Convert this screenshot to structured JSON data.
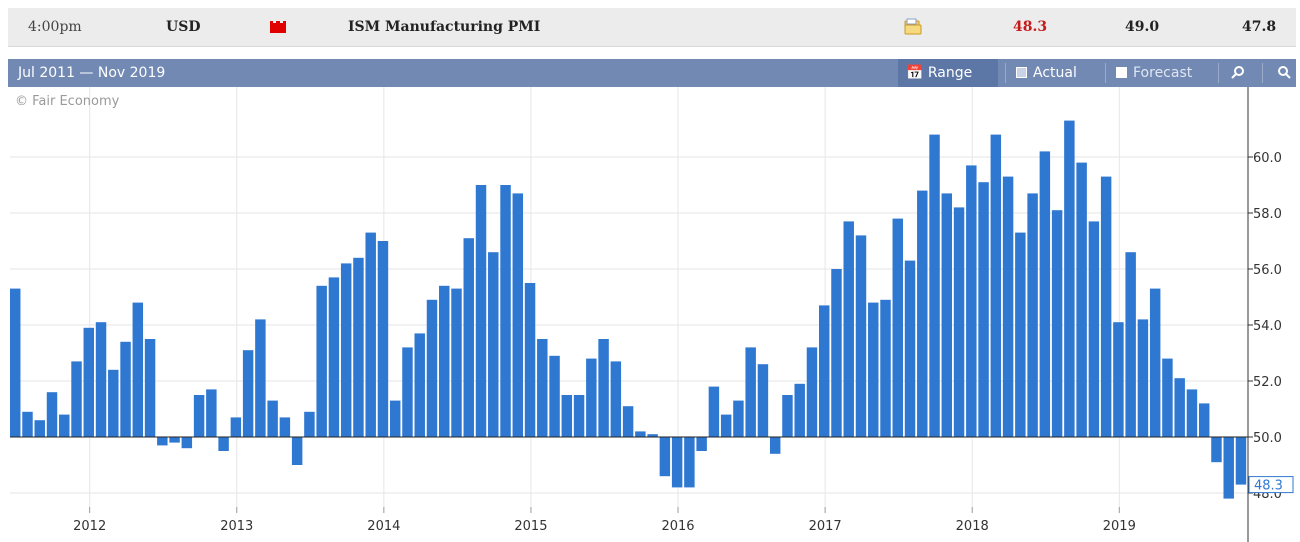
{
  "event_row": {
    "time": "4:00pm",
    "currency": "USD",
    "impact_color": "#e00000",
    "event": "ISM Manufacturing PMI",
    "detail_icon": "folder-icon",
    "actual": "48.3",
    "actual_color": "#c41a1a",
    "forecast": "49.0",
    "previous": "47.8"
  },
  "toolbar": {
    "range_title": "Jul 2011 — Nov 2019",
    "range_button": "Range",
    "actual_toggle": "Actual",
    "actual_checked": true,
    "forecast_toggle": "Forecast",
    "forecast_checked": false,
    "zoom_in_icon": "zoom-in-icon",
    "zoom_out_icon": "zoom-out-icon"
  },
  "chart_data": {
    "type": "bar",
    "title": "",
    "copyright": "© Fair Economy",
    "baseline": 50.0,
    "ylim": [
      47.5,
      62.5
    ],
    "yticks": [
      48.0,
      50.0,
      52.0,
      54.0,
      56.0,
      58.0,
      60.0
    ],
    "latest_label": "48.3",
    "bar_color": "#2f78d2",
    "grid": true,
    "x_start": "2011-07",
    "x_end": "2019-11",
    "x_tick_labels": [
      "2012",
      "2013",
      "2014",
      "2015",
      "2016",
      "2017",
      "2018",
      "2019"
    ],
    "categories": [
      "2011-07",
      "2011-08",
      "2011-09",
      "2011-10",
      "2011-11",
      "2011-12",
      "2012-01",
      "2012-02",
      "2012-03",
      "2012-04",
      "2012-05",
      "2012-06",
      "2012-07",
      "2012-08",
      "2012-09",
      "2012-10",
      "2012-11",
      "2012-12",
      "2013-01",
      "2013-02",
      "2013-03",
      "2013-04",
      "2013-05",
      "2013-06",
      "2013-07",
      "2013-08",
      "2013-09",
      "2013-10",
      "2013-11",
      "2013-12",
      "2014-01",
      "2014-02",
      "2014-03",
      "2014-04",
      "2014-05",
      "2014-06",
      "2014-07",
      "2014-08",
      "2014-09",
      "2014-10",
      "2014-11",
      "2014-12",
      "2015-01",
      "2015-02",
      "2015-03",
      "2015-04",
      "2015-05",
      "2015-06",
      "2015-07",
      "2015-08",
      "2015-09",
      "2015-10",
      "2015-11",
      "2015-12",
      "2016-01",
      "2016-02",
      "2016-03",
      "2016-04",
      "2016-05",
      "2016-06",
      "2016-07",
      "2016-08",
      "2016-09",
      "2016-10",
      "2016-11",
      "2016-12",
      "2017-01",
      "2017-02",
      "2017-03",
      "2017-04",
      "2017-05",
      "2017-06",
      "2017-07",
      "2017-08",
      "2017-09",
      "2017-10",
      "2017-11",
      "2017-12",
      "2018-01",
      "2018-02",
      "2018-03",
      "2018-04",
      "2018-05",
      "2018-06",
      "2018-07",
      "2018-08",
      "2018-09",
      "2018-10",
      "2018-11",
      "2018-12",
      "2019-01",
      "2019-02",
      "2019-03",
      "2019-04",
      "2019-05",
      "2019-06",
      "2019-07",
      "2019-08",
      "2019-09",
      "2019-10",
      "2019-11"
    ],
    "values": [
      55.3,
      50.9,
      50.6,
      51.6,
      50.8,
      52.7,
      53.9,
      54.1,
      52.4,
      53.4,
      54.8,
      53.5,
      49.7,
      49.8,
      49.6,
      51.5,
      51.7,
      49.5,
      50.7,
      53.1,
      54.2,
      51.3,
      50.7,
      49.0,
      50.9,
      55.4,
      55.7,
      56.2,
      56.4,
      57.3,
      57.0,
      51.3,
      53.2,
      53.7,
      54.9,
      55.4,
      55.3,
      57.1,
      59.0,
      56.6,
      59.0,
      58.7,
      55.5,
      53.5,
      52.9,
      51.5,
      51.5,
      52.8,
      53.5,
      52.7,
      51.1,
      50.2,
      50.1,
      48.6,
      48.2,
      48.2,
      49.5,
      51.8,
      50.8,
      51.3,
      53.2,
      52.6,
      49.4,
      51.5,
      51.9,
      53.2,
      54.7,
      56.0,
      57.7,
      57.2,
      54.8,
      54.9,
      57.8,
      56.3,
      58.8,
      60.8,
      58.7,
      58.2,
      59.7,
      59.1,
      60.8,
      59.3,
      57.3,
      58.7,
      60.2,
      58.1,
      61.3,
      59.8,
      57.7,
      59.3,
      54.1,
      56.6,
      54.2,
      55.3,
      52.8,
      52.1,
      51.7,
      51.2,
      49.1,
      47.8,
      48.3
    ]
  }
}
